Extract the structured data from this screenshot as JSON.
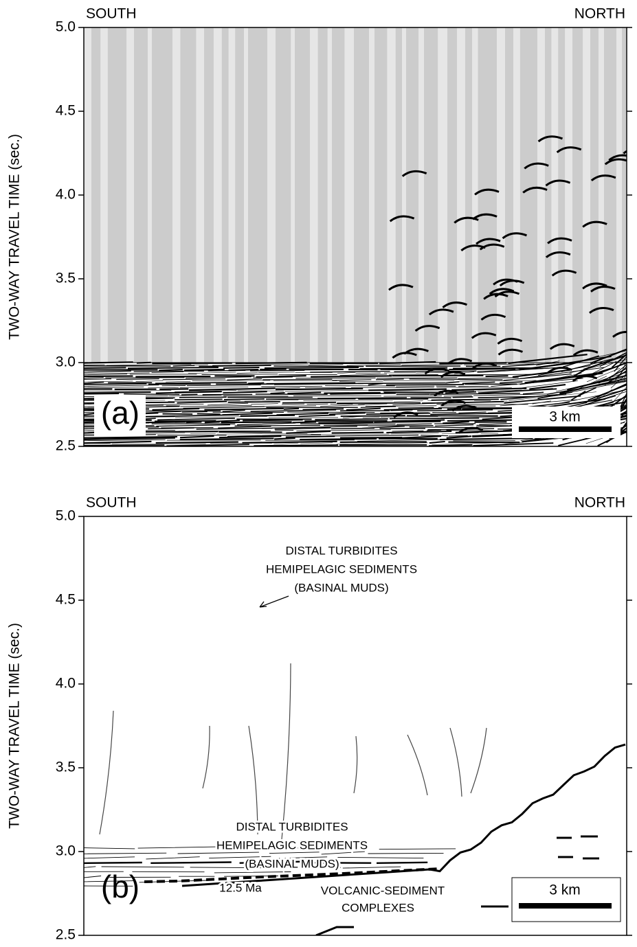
{
  "panels": [
    {
      "label": "(a)",
      "left_label": "SOUTH",
      "right_label": "NORTH",
      "y_axis_label": "TWO-WAY TRAVEL TIME (sec.)",
      "ylim": [
        2.5,
        5.0
      ],
      "yticks": [
        2.5,
        {
          "value": 3,
          "label": "3.0"
        },
        3.5,
        {
          "value": 4,
          "label": "4.0"
        },
        4.5,
        {
          "value": 5,
          "label": "5.0"
        }
      ],
      "scale_bar": "3 km"
    },
    {
      "label": "(b)",
      "left_label": "SOUTH",
      "right_label": "NORTH",
      "y_axis_label": "TWO-WAY TRAVEL TIME (sec.)",
      "ylim": [
        2.5,
        5.0
      ],
      "yticks": [
        2.5,
        {
          "value": 3,
          "label": "3.0"
        },
        3.5,
        {
          "value": 4,
          "label": "4.0"
        },
        4.5,
        {
          "value": 5,
          "label": "5.0"
        }
      ],
      "scale_bar": "3 km",
      "annotations": {
        "upper_unit": [
          "DISTAL TURBIDITES",
          "HEMIPELAGIC SEDIMENTS",
          "(BASINAL MUDS)"
        ],
        "lower_unit": [
          "DISTAL TURBIDITES",
          "HEMIPELAGIC SEDIMENTS",
          "(BASINAL MUDS)"
        ],
        "horizon": "12.5 Ma",
        "basement": [
          "VOLCANIC-SEDIMENT",
          "COMPLEXES"
        ]
      }
    }
  ]
}
